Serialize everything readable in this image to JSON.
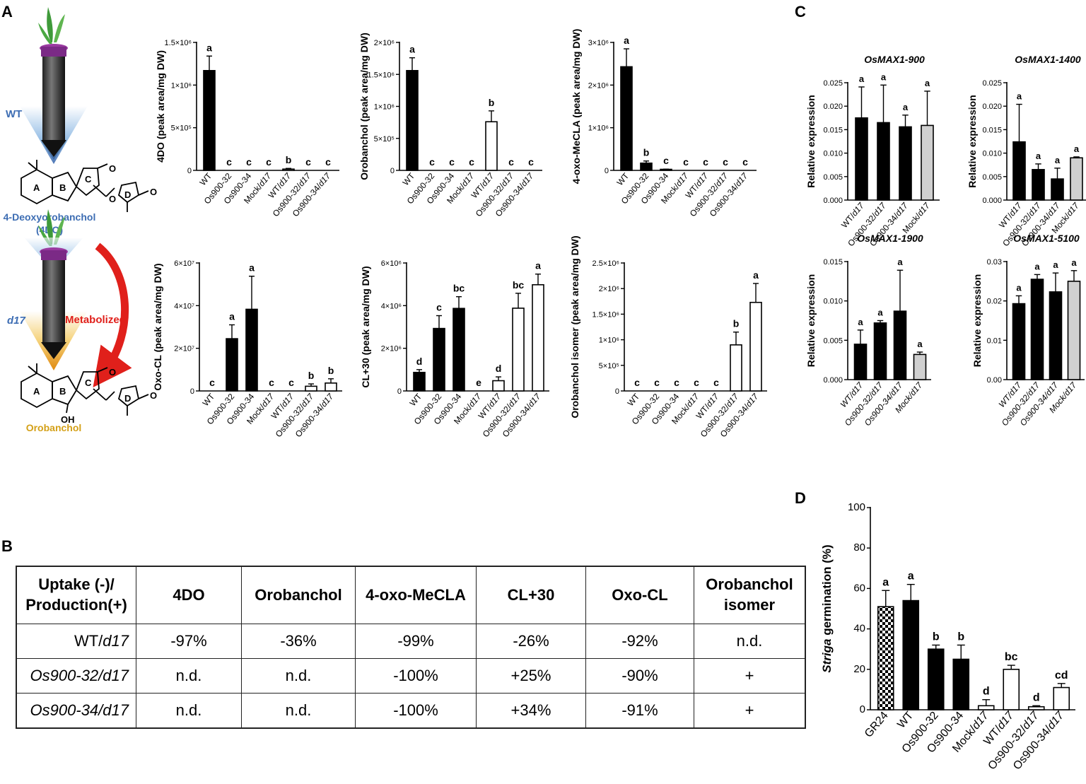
{
  "panel_labels": {
    "A": "A",
    "B": "B",
    "C": "C",
    "D": "D"
  },
  "diagram": {
    "wt_label": "WT",
    "d17_label": "d17",
    "compound1_line1": "4-Deoxyorobanchol",
    "compound1_line2": "(4DO)",
    "compound2": "Orobanchol",
    "arrow_label": "Metabolized",
    "ring_labels": [
      "A",
      "B",
      "C",
      "D"
    ],
    "oh_label": "OH",
    "o_label": "O"
  },
  "colors": {
    "black": "#000000",
    "white": "#ffffff",
    "grey": "#d0d0d0",
    "blue": "#3d6db3",
    "orange": "#d4a017",
    "red": "#e0201b"
  },
  "chart_data": [
    {
      "id": "A1",
      "type": "bar",
      "ylabel": "4DO (peak area/mg DW)",
      "categories": [
        "WT",
        "Os900-32",
        "Os900-34",
        "Mock/d17",
        "WT/d17",
        "Os900-32/d17",
        "Os900-34/d17"
      ],
      "values": [
        1170000,
        0,
        0,
        0,
        15000,
        0,
        0
      ],
      "errors": [
        170000,
        0,
        0,
        0,
        8000,
        0,
        0
      ],
      "fills": [
        "black",
        "black",
        "black",
        "white",
        "white",
        "white",
        "white"
      ],
      "letters": [
        "a",
        "c",
        "c",
        "c",
        "b",
        "c",
        "c"
      ],
      "ylim": [
        0,
        1500000
      ],
      "yticks": [
        {
          "v": 0,
          "t": "0"
        },
        {
          "v": 500000,
          "t": "5×10⁵"
        },
        {
          "v": 1000000,
          "t": "1×10⁶"
        },
        {
          "v": 1500000,
          "t": "1.5×10⁶"
        }
      ]
    },
    {
      "id": "A2",
      "type": "bar",
      "ylabel": "Orobanchol (peak area/mg DW)",
      "categories": [
        "WT",
        "Os900-32",
        "Os900-34",
        "Mock/d17",
        "WT/d17",
        "Os900-32/d17",
        "Os900-34/d17"
      ],
      "values": [
        1560000,
        0,
        0,
        0,
        760000,
        0,
        0
      ],
      "errors": [
        200000,
        0,
        0,
        0,
        170000,
        0,
        0
      ],
      "fills": [
        "black",
        "black",
        "black",
        "white",
        "white",
        "white",
        "white"
      ],
      "letters": [
        "a",
        "c",
        "c",
        "c",
        "b",
        "c",
        "c"
      ],
      "ylim": [
        0,
        2000000
      ],
      "yticks": [
        {
          "v": 0,
          "t": "0"
        },
        {
          "v": 500000,
          "t": "5×10⁵"
        },
        {
          "v": 1000000,
          "t": "1×10⁶"
        },
        {
          "v": 1500000,
          "t": "1.5×10⁶"
        },
        {
          "v": 2000000,
          "t": "2×10⁶"
        }
      ]
    },
    {
      "id": "A3",
      "type": "bar",
      "ylabel": "4-oxo-MeCLA (peak area/mg DW)",
      "categories": [
        "WT",
        "Os900-32",
        "Os900-34",
        "Mock/d17",
        "WT/d17",
        "Os900-32/d17",
        "Os900-34/d17"
      ],
      "values": [
        2430000,
        170000,
        20000,
        0,
        0,
        0,
        0
      ],
      "errors": [
        420000,
        50000,
        10000,
        0,
        0,
        0,
        0
      ],
      "fills": [
        "black",
        "black",
        "black",
        "white",
        "white",
        "white",
        "white"
      ],
      "letters": [
        "a",
        "b",
        "c",
        "c",
        "c",
        "c",
        "c"
      ],
      "ylim": [
        0,
        3000000
      ],
      "yticks": [
        {
          "v": 0,
          "t": "0"
        },
        {
          "v": 1000000,
          "t": "1×10⁶"
        },
        {
          "v": 2000000,
          "t": "2×10⁶"
        },
        {
          "v": 3000000,
          "t": "3×10⁶"
        }
      ]
    },
    {
      "id": "A4",
      "type": "bar",
      "ylabel": "Oxo-CL (peak area/mg DW)",
      "categories": [
        "WT",
        "Os900-32",
        "Os900-34",
        "Mock/d17",
        "WT/d17",
        "Os900-32/d17",
        "Os900-34/d17"
      ],
      "values": [
        0,
        24500000,
        38300000,
        0,
        0,
        2200000,
        3700000
      ],
      "errors": [
        0,
        6500000,
        15500000,
        0,
        0,
        1100000,
        2000000
      ],
      "fills": [
        "black",
        "black",
        "black",
        "white",
        "white",
        "white",
        "white"
      ],
      "letters": [
        "c",
        "a",
        "a",
        "c",
        "c",
        "b",
        "b"
      ],
      "ylim": [
        0,
        60000000
      ],
      "yticks": [
        {
          "v": 0,
          "t": "0"
        },
        {
          "v": 20000000,
          "t": "2×10⁷"
        },
        {
          "v": 40000000,
          "t": "4×10⁷"
        },
        {
          "v": 60000000,
          "t": "6×10⁷"
        }
      ]
    },
    {
      "id": "A5",
      "type": "bar",
      "ylabel": "CL+30 (peak area/mg DW)",
      "categories": [
        "WT",
        "Os900-32",
        "Os900-34",
        "Mock/d17",
        "WT/d17",
        "Os900-32/d17",
        "Os900-34/d17"
      ],
      "values": [
        870000,
        2930000,
        3870000,
        0,
        480000,
        3880000,
        4980000
      ],
      "errors": [
        130000,
        600000,
        550000,
        0,
        180000,
        700000,
        500000
      ],
      "fills": [
        "black",
        "black",
        "black",
        "white",
        "white",
        "white",
        "white"
      ],
      "letters": [
        "d",
        "c",
        "bc",
        "e",
        "d",
        "bc",
        "a"
      ],
      "ylim": [
        0,
        6000000
      ],
      "yticks": [
        {
          "v": 0,
          "t": "0"
        },
        {
          "v": 2000000,
          "t": "2×10⁶"
        },
        {
          "v": 4000000,
          "t": "4×10⁶"
        },
        {
          "v": 6000000,
          "t": "6×10⁶"
        }
      ]
    },
    {
      "id": "A6",
      "type": "bar",
      "ylabel": "Orobanchol isomer (peak area/mg DW)",
      "categories": [
        "WT",
        "Os900-32",
        "Os900-34",
        "Mock/d17",
        "WT/d17",
        "Os900-32/d17",
        "Os900-34/d17"
      ],
      "values": [
        0,
        0,
        0,
        0,
        0,
        900000,
        1730000
      ],
      "errors": [
        0,
        0,
        0,
        0,
        0,
        250000,
        370000
      ],
      "fills": [
        "black",
        "black",
        "black",
        "white",
        "white",
        "white",
        "white"
      ],
      "letters": [
        "c",
        "c",
        "c",
        "c",
        "c",
        "b",
        "a"
      ],
      "ylim": [
        0,
        2500000
      ],
      "yticks": [
        {
          "v": 0,
          "t": "0"
        },
        {
          "v": 500000,
          "t": "5×10⁵"
        },
        {
          "v": 1000000,
          "t": "1×10⁶"
        },
        {
          "v": 1500000,
          "t": "1.5×10⁶"
        },
        {
          "v": 2000000,
          "t": "2×10⁶"
        },
        {
          "v": 2500000,
          "t": "2.5×10⁶"
        }
      ]
    },
    {
      "id": "C1",
      "type": "bar",
      "title": "OsMAX1-900",
      "ylabel": "Relative expression",
      "categories": [
        "WT/d17",
        "Os900-32/d17",
        "Os900-34/d17",
        "Mock/d17"
      ],
      "values": [
        0.0175,
        0.0165,
        0.0156,
        0.0159
      ],
      "errors": [
        0.0066,
        0.008,
        0.0025,
        0.0073
      ],
      "fills": [
        "black",
        "black",
        "black",
        "grey"
      ],
      "letters": [
        "a",
        "a",
        "a",
        "a"
      ],
      "ylim": [
        0,
        0.025
      ],
      "yticks": [
        {
          "v": 0,
          "t": "0.000"
        },
        {
          "v": 0.005,
          "t": "0.005"
        },
        {
          "v": 0.01,
          "t": "0.010"
        },
        {
          "v": 0.015,
          "t": "0.015"
        },
        {
          "v": 0.02,
          "t": "0.020"
        },
        {
          "v": 0.025,
          "t": "0.025"
        }
      ]
    },
    {
      "id": "C2",
      "type": "bar",
      "title": "OsMAX1-1400",
      "ylabel": "Relative expression",
      "categories": [
        "WT/d17",
        "Os900-32/d17",
        "Os900-34/d17",
        "Mock/d17"
      ],
      "values": [
        0.0124,
        0.0065,
        0.0045,
        0.009
      ],
      "errors": [
        0.008,
        0.0012,
        0.0023,
        0.0002
      ],
      "fills": [
        "black",
        "black",
        "black",
        "grey"
      ],
      "letters": [
        "a",
        "a",
        "a",
        "a"
      ],
      "ylim": [
        0,
        0.025
      ],
      "yticks": [
        {
          "v": 0,
          "t": "0.000"
        },
        {
          "v": 0.005,
          "t": "0.005"
        },
        {
          "v": 0.01,
          "t": "0.010"
        },
        {
          "v": 0.015,
          "t": "0.015"
        },
        {
          "v": 0.02,
          "t": "0.020"
        },
        {
          "v": 0.025,
          "t": "0.025"
        }
      ]
    },
    {
      "id": "C3",
      "type": "bar",
      "title": "OsMAX1-1900",
      "ylabel": "Relative expression",
      "categories": [
        "WT/d17",
        "Os900-32/d17",
        "Os900-34/d17",
        "Mock/d17"
      ],
      "values": [
        0.0045,
        0.0072,
        0.0087,
        0.0032
      ],
      "errors": [
        0.0018,
        0.0003,
        0.0052,
        0.0003
      ],
      "fills": [
        "black",
        "black",
        "black",
        "grey"
      ],
      "letters": [
        "a",
        "a",
        "a",
        "a"
      ],
      "ylim": [
        0,
        0.015
      ],
      "yticks": [
        {
          "v": 0,
          "t": "0.000"
        },
        {
          "v": 0.005,
          "t": "0.005"
        },
        {
          "v": 0.01,
          "t": "0.010"
        },
        {
          "v": 0.015,
          "t": "0.015"
        }
      ]
    },
    {
      "id": "C4",
      "type": "bar",
      "title": "OsMAX1-5100",
      "ylabel": "Relative expression",
      "categories": [
        "WT/d17",
        "Os900-32/d17",
        "Os900-34/d17",
        "Mock/d17"
      ],
      "values": [
        0.0193,
        0.0255,
        0.0223,
        0.025
      ],
      "errors": [
        0.002,
        0.0012,
        0.0048,
        0.0027
      ],
      "fills": [
        "black",
        "black",
        "black",
        "grey"
      ],
      "letters": [
        "a",
        "a",
        "a",
        "a"
      ],
      "ylim": [
        0,
        0.03
      ],
      "yticks": [
        {
          "v": 0,
          "t": "0.00"
        },
        {
          "v": 0.01,
          "t": "0.01"
        },
        {
          "v": 0.02,
          "t": "0.02"
        },
        {
          "v": 0.03,
          "t": "0.03"
        }
      ]
    },
    {
      "id": "D",
      "type": "bar",
      "ylabel_italic": "Striga",
      "ylabel_rest": " germination (%)",
      "categories": [
        "GR24",
        "WT",
        "Os900-32",
        "Os900-34",
        "Mock/d17",
        "WT/d17",
        "Os900-32/d17",
        "Os900-34/d17"
      ],
      "values": [
        51,
        54,
        30,
        25,
        2,
        20,
        1.5,
        11
      ],
      "errors": [
        8,
        8,
        2,
        7,
        3,
        2,
        0.5,
        2
      ],
      "fills": [
        "pattern",
        "black",
        "black",
        "black",
        "white",
        "white",
        "white",
        "white"
      ],
      "letters": [
        "a",
        "a",
        "b",
        "b",
        "d",
        "bc",
        "d",
        "cd"
      ],
      "ylim": [
        0,
        100
      ],
      "yticks": [
        {
          "v": 0,
          "t": "0"
        },
        {
          "v": 20,
          "t": "20"
        },
        {
          "v": 40,
          "t": "40"
        },
        {
          "v": 60,
          "t": "60"
        },
        {
          "v": 80,
          "t": "80"
        },
        {
          "v": 100,
          "t": "100"
        }
      ]
    }
  ],
  "table": {
    "header_line1": "Uptake (-)/",
    "header_line2": "Production(+)",
    "columns": [
      "4DO",
      "Orobanchol",
      "4-oxo-MeCLA",
      "CL+30",
      "Oxo-CL"
    ],
    "last_col_line1": "Orobanchol",
    "last_col_line2": "isomer",
    "rows": [
      {
        "pre": "WT/",
        "it": "d17",
        "cells": [
          "-97%",
          "-36%",
          "-99%",
          "-26%",
          "-92%",
          "n.d."
        ]
      },
      {
        "pre": "Os900-32/",
        "it": "d17",
        "cells": [
          "n.d.",
          "n.d.",
          "-100%",
          "+25%",
          "-90%",
          "+"
        ]
      },
      {
        "pre": "Os900-34/",
        "it": "d17",
        "cells": [
          "n.d.",
          "n.d.",
          "-100%",
          "+34%",
          "-91%",
          "+"
        ]
      }
    ]
  }
}
